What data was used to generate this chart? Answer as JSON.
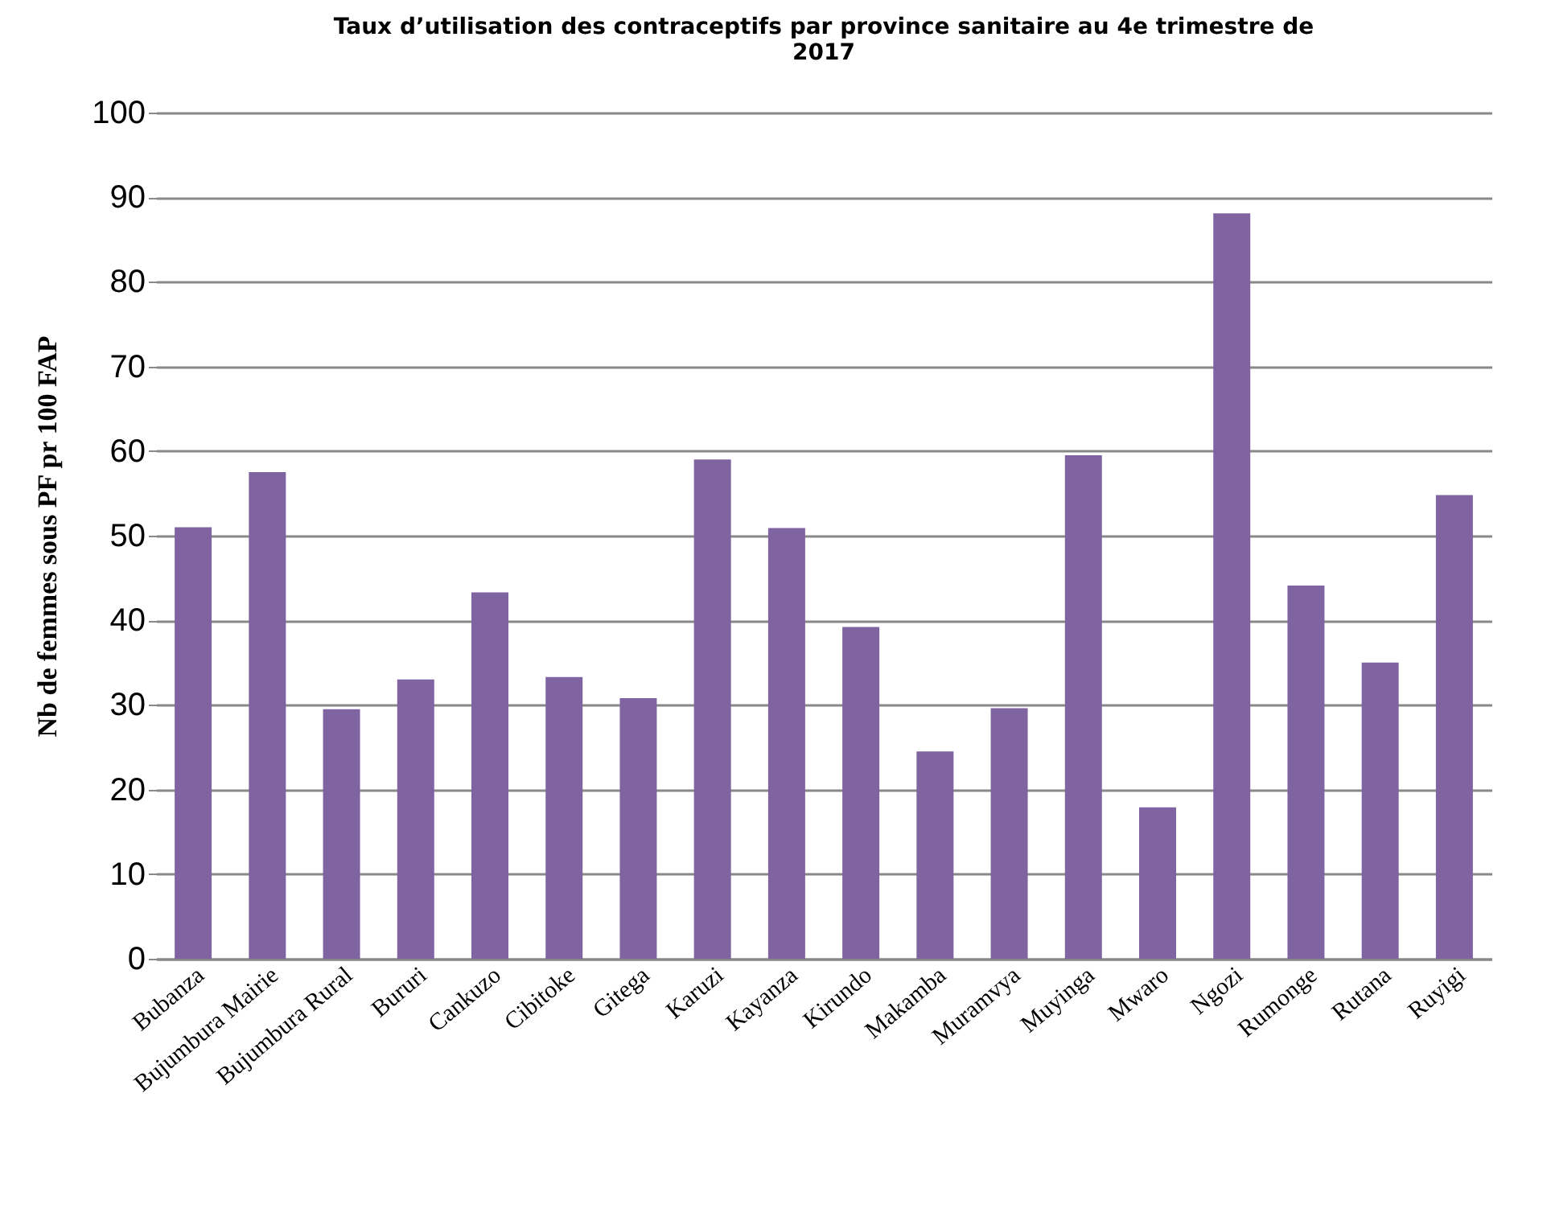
{
  "chart_data": {
    "type": "bar",
    "title": "Taux d’utilisation des contraceptifs par province sanitaire au 4e trimestre de 2017",
    "ylabel": "Nb de femmes sous PF pr 100 FAP",
    "categories": [
      "Bubanza",
      "Bujumbura Mairie",
      "Bujumbura Rural",
      "Bururi",
      "Cankuzo",
      "Cibitoke",
      "Gitega",
      "Karuzi",
      "Kayanza",
      "Kirundo",
      "Makamba",
      "Muramvya",
      "Muyinga",
      "Mwaro",
      "Ngozi",
      "Rumonge",
      "Rutana",
      "Ruyigi"
    ],
    "values": [
      51,
      57.5,
      29.5,
      33,
      43.3,
      33.3,
      30.8,
      59,
      50.9,
      39.2,
      24.5,
      29.6,
      59.5,
      17.9,
      88.1,
      44.1,
      35,
      54.8
    ],
    "color": "#8064a2",
    "ylim": [
      0,
      100
    ],
    "yticks": [
      0,
      10,
      20,
      30,
      40,
      50,
      60,
      70,
      80,
      90,
      100
    ],
    "grid": "y"
  }
}
